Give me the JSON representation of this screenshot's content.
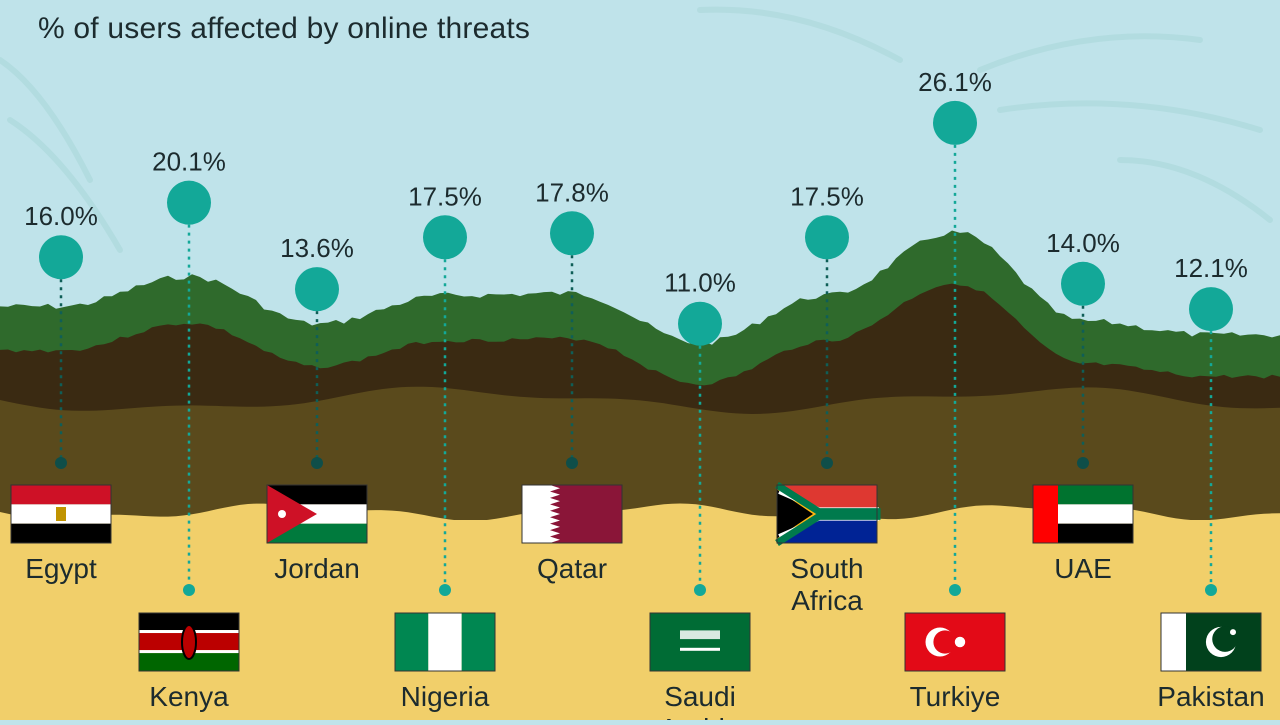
{
  "title": "% of users affected by online threats",
  "colors": {
    "sky": "#bfe3ea",
    "dot": "#13a898",
    "green": "#2f6a2c",
    "dark": "#3a2a12",
    "olive": "#5a4a1c",
    "sand": "#f1cf6a"
  },
  "chart_data": {
    "type": "bar",
    "title": "% of users affected by online threats",
    "unit": "%",
    "categories": [
      "Egypt",
      "Kenya",
      "Jordan",
      "Nigeria",
      "Qatar",
      "Saudi Arabia",
      "South Africa",
      "Turkiye",
      "UAE",
      "Pakistan"
    ],
    "values": [
      16.0,
      20.1,
      13.6,
      17.5,
      17.8,
      11.0,
      17.5,
      26.1,
      14.0,
      12.1
    ],
    "value_labels": [
      "16.0%",
      "20.1%",
      "13.6%",
      "17.5%",
      "17.8%",
      "11.0%",
      "17.5%",
      "26.1%",
      "14.0%",
      "12.1%"
    ],
    "country_labels": [
      [
        "Egypt"
      ],
      [
        "Kenya"
      ],
      [
        "Jordan"
      ],
      [
        "Nigeria"
      ],
      [
        "Qatar"
      ],
      [
        "Saudi",
        "Arabia"
      ],
      [
        "South",
        "Africa"
      ],
      [
        "Turkiye"
      ],
      [
        "UAE"
      ],
      [
        "Pakistan"
      ]
    ],
    "flags": [
      "egypt-flag",
      "kenya-flag",
      "jordan-flag",
      "nigeria-flag",
      "qatar-flag",
      "saudi-arabia-flag",
      "south-africa-flag",
      "turkiye-flag",
      "uae-flag",
      "pakistan-flag"
    ]
  }
}
